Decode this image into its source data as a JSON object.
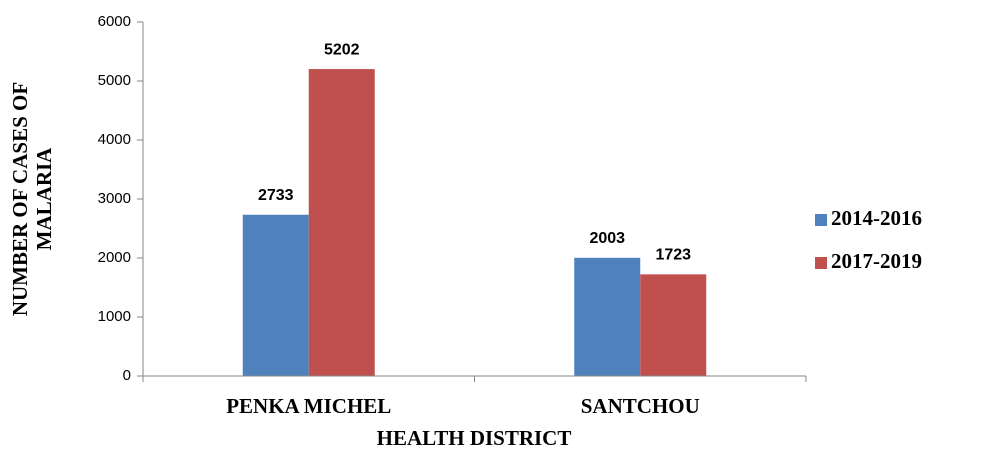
{
  "chart_data": {
    "type": "bar",
    "xlabel": "HEALTH DISTRICT",
    "ylabel": [
      "NUMBER OF CASES OF",
      "MALARIA"
    ],
    "categories": [
      "PENKA MICHEL",
      "SANTCHOU"
    ],
    "series": [
      {
        "name": "2014-2016",
        "color": "#4f81bd",
        "values": [
          2733,
          2003
        ]
      },
      {
        "name": "2017-2019",
        "color": "#c0504d",
        "values": [
          5202,
          1723
        ]
      }
    ],
    "ylim": [
      0,
      6000
    ],
    "yticks": [
      0,
      1000,
      2000,
      3000,
      4000,
      5000,
      6000
    ],
    "grid": false,
    "legend": "right"
  }
}
